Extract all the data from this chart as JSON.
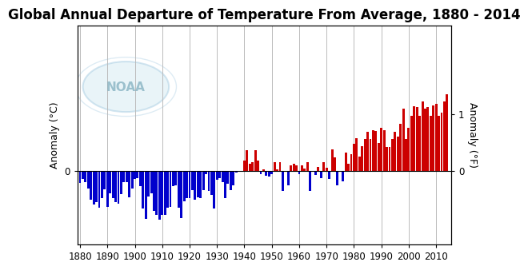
{
  "title": "Global Annual Departure of Temperature From Average, 1880 - 2014",
  "ylabel_left": "Anomaly (°C)",
  "ylabel_right": "Anomaly (°F)",
  "xlim": [
    1879,
    2015.5
  ],
  "ylim_c": [
    -0.72,
    1.42
  ],
  "xticks": [
    1880,
    1890,
    1900,
    1910,
    1920,
    1930,
    1940,
    1950,
    1960,
    1970,
    1980,
    1990,
    2000,
    2010
  ],
  "years": [
    1880,
    1881,
    1882,
    1883,
    1884,
    1885,
    1886,
    1887,
    1888,
    1889,
    1890,
    1891,
    1892,
    1893,
    1894,
    1895,
    1896,
    1897,
    1898,
    1899,
    1900,
    1901,
    1902,
    1903,
    1904,
    1905,
    1906,
    1907,
    1908,
    1909,
    1910,
    1911,
    1912,
    1913,
    1914,
    1915,
    1916,
    1917,
    1918,
    1919,
    1920,
    1921,
    1922,
    1923,
    1924,
    1925,
    1926,
    1927,
    1928,
    1929,
    1930,
    1931,
    1932,
    1933,
    1934,
    1935,
    1936,
    1937,
    1938,
    1939,
    1940,
    1941,
    1942,
    1943,
    1944,
    1945,
    1946,
    1947,
    1948,
    1949,
    1950,
    1951,
    1952,
    1953,
    1954,
    1955,
    1956,
    1957,
    1958,
    1959,
    1960,
    1961,
    1962,
    1963,
    1964,
    1965,
    1966,
    1967,
    1968,
    1969,
    1970,
    1971,
    1972,
    1973,
    1974,
    1975,
    1976,
    1977,
    1978,
    1979,
    1980,
    1981,
    1982,
    1983,
    1984,
    1985,
    1986,
    1987,
    1988,
    1989,
    1990,
    1991,
    1992,
    1993,
    1994,
    1995,
    1996,
    1997,
    1998,
    1999,
    2000,
    2001,
    2002,
    2003,
    2004,
    2005,
    2006,
    2007,
    2008,
    2009,
    2010,
    2011,
    2012,
    2013,
    2014
  ],
  "anomalies_c": [
    -0.12,
    -0.08,
    -0.11,
    -0.17,
    -0.28,
    -0.33,
    -0.31,
    -0.36,
    -0.27,
    -0.18,
    -0.35,
    -0.22,
    -0.27,
    -0.31,
    -0.32,
    -0.23,
    -0.11,
    -0.11,
    -0.26,
    -0.17,
    -0.08,
    -0.07,
    -0.15,
    -0.37,
    -0.47,
    -0.25,
    -0.22,
    -0.39,
    -0.43,
    -0.48,
    -0.43,
    -0.43,
    -0.36,
    -0.35,
    -0.15,
    -0.14,
    -0.36,
    -0.46,
    -0.3,
    -0.27,
    -0.27,
    -0.19,
    -0.28,
    -0.26,
    -0.27,
    -0.19,
    -0.03,
    -0.2,
    -0.24,
    -0.37,
    -0.09,
    -0.07,
    -0.11,
    -0.27,
    -0.13,
    -0.19,
    -0.14,
    -0.02,
    -0.0,
    -0.01,
    0.1,
    0.2,
    0.07,
    0.08,
    0.2,
    0.1,
    -0.03,
    0.01,
    -0.05,
    -0.06,
    -0.03,
    0.08,
    0.01,
    0.08,
    -0.2,
    -0.01,
    -0.14,
    0.05,
    0.07,
    0.05,
    -0.03,
    0.05,
    0.02,
    0.08,
    -0.2,
    -0.01,
    -0.04,
    0.04,
    -0.07,
    0.08,
    0.03,
    -0.08,
    0.21,
    0.13,
    -0.14,
    -0.01,
    -0.1,
    0.18,
    0.07,
    0.16,
    0.26,
    0.32,
    0.14,
    0.24,
    0.31,
    0.38,
    0.31,
    0.4,
    0.39,
    0.27,
    0.42,
    0.4,
    0.23,
    0.23,
    0.31,
    0.38,
    0.33,
    0.46,
    0.61,
    0.31,
    0.42,
    0.54,
    0.63,
    0.62,
    0.54,
    0.68,
    0.61,
    0.62,
    0.54,
    0.64,
    0.65,
    0.54,
    0.57,
    0.68,
    0.75
  ],
  "bar_color_positive": "#cc0000",
  "bar_color_negative": "#0000cc",
  "background_color": "#ffffff",
  "title_fontsize": 12,
  "axis_fontsize": 9,
  "tick_fontsize": 8.5,
  "grid_color": "#bbbbbb"
}
